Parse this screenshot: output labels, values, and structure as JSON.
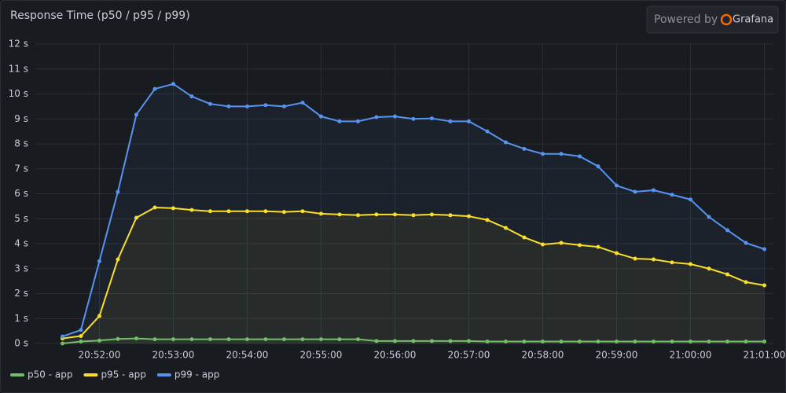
{
  "chart_data": {
    "type": "line",
    "title": "Response Time (p50 / p95 / p99)",
    "watermark": {
      "prefix": "Powered by",
      "brand": "Grafana"
    },
    "x": [
      "20:51:30",
      "20:51:45",
      "20:52:00",
      "20:52:15",
      "20:52:30",
      "20:52:45",
      "20:53:00",
      "20:53:15",
      "20:53:30",
      "20:53:45",
      "20:54:00",
      "20:54:15",
      "20:54:30",
      "20:54:45",
      "20:55:00",
      "20:55:15",
      "20:55:30",
      "20:55:45",
      "20:56:00",
      "20:56:15",
      "20:56:30",
      "20:56:45",
      "20:57:00",
      "20:57:15",
      "20:57:30",
      "20:57:45",
      "20:58:00",
      "20:58:15",
      "20:58:30",
      "20:58:45",
      "20:59:00",
      "20:59:15",
      "20:59:30",
      "20:59:45",
      "21:00:00",
      "21:00:15",
      "21:00:30",
      "21:00:45",
      "21:01:00"
    ],
    "series": [
      {
        "name": "p50 - app",
        "color": "#73bf69",
        "values": [
          0.0,
          0.08,
          0.12,
          0.18,
          0.2,
          0.17,
          0.17,
          0.17,
          0.17,
          0.17,
          0.17,
          0.17,
          0.17,
          0.17,
          0.17,
          0.17,
          0.17,
          0.1,
          0.1,
          0.1,
          0.1,
          0.1,
          0.1,
          0.08,
          0.08,
          0.08,
          0.08,
          0.08,
          0.08,
          0.08,
          0.08,
          0.08,
          0.08,
          0.08,
          0.08,
          0.08,
          0.08,
          0.08,
          0.08
        ]
      },
      {
        "name": "p95 - app",
        "color": "#fade2a",
        "values": [
          0.2,
          0.3,
          1.1,
          3.37,
          5.04,
          5.45,
          5.42,
          5.35,
          5.3,
          5.3,
          5.3,
          5.3,
          5.27,
          5.3,
          5.2,
          5.17,
          5.14,
          5.17,
          5.17,
          5.14,
          5.17,
          5.14,
          5.1,
          4.95,
          4.63,
          4.25,
          3.97,
          4.03,
          3.94,
          3.87,
          3.62,
          3.4,
          3.37,
          3.25,
          3.18,
          3.0,
          2.77,
          2.46,
          2.33
        ]
      },
      {
        "name": "p99 - app",
        "color": "#5794f2",
        "values": [
          0.28,
          0.54,
          3.3,
          6.08,
          9.17,
          10.2,
          10.4,
          9.9,
          9.6,
          9.5,
          9.5,
          9.55,
          9.5,
          9.65,
          9.1,
          8.9,
          8.9,
          9.07,
          9.1,
          9.0,
          9.02,
          8.9,
          8.9,
          8.5,
          8.06,
          7.8,
          7.6,
          7.6,
          7.5,
          7.1,
          6.33,
          6.08,
          6.14,
          5.96,
          5.77,
          5.07,
          4.54,
          4.03,
          3.78
        ]
      }
    ],
    "xlim": [
      "20:51:08",
      "21:01:08"
    ],
    "xticks": [
      "20:52:00",
      "20:53:00",
      "20:54:00",
      "20:55:00",
      "20:56:00",
      "20:57:00",
      "20:58:00",
      "20:59:00",
      "21:00:00",
      "21:01:00"
    ],
    "ylim": [
      0,
      12
    ],
    "yticks": [
      {
        "value": 0,
        "label": "0 s"
      },
      {
        "value": 1,
        "label": "1 s"
      },
      {
        "value": 2,
        "label": "2 s"
      },
      {
        "value": 3,
        "label": "3 s"
      },
      {
        "value": 4,
        "label": "4 s"
      },
      {
        "value": 5,
        "label": "5 s"
      },
      {
        "value": 6,
        "label": "6 s"
      },
      {
        "value": 7,
        "label": "7 s"
      },
      {
        "value": 8,
        "label": "8 s"
      },
      {
        "value": 9,
        "label": "9 s"
      },
      {
        "value": 10,
        "label": "10 s"
      },
      {
        "value": 11,
        "label": "11 s"
      },
      {
        "value": 12,
        "label": "12 s"
      }
    ],
    "grid": true,
    "legend": "bottom-left"
  }
}
